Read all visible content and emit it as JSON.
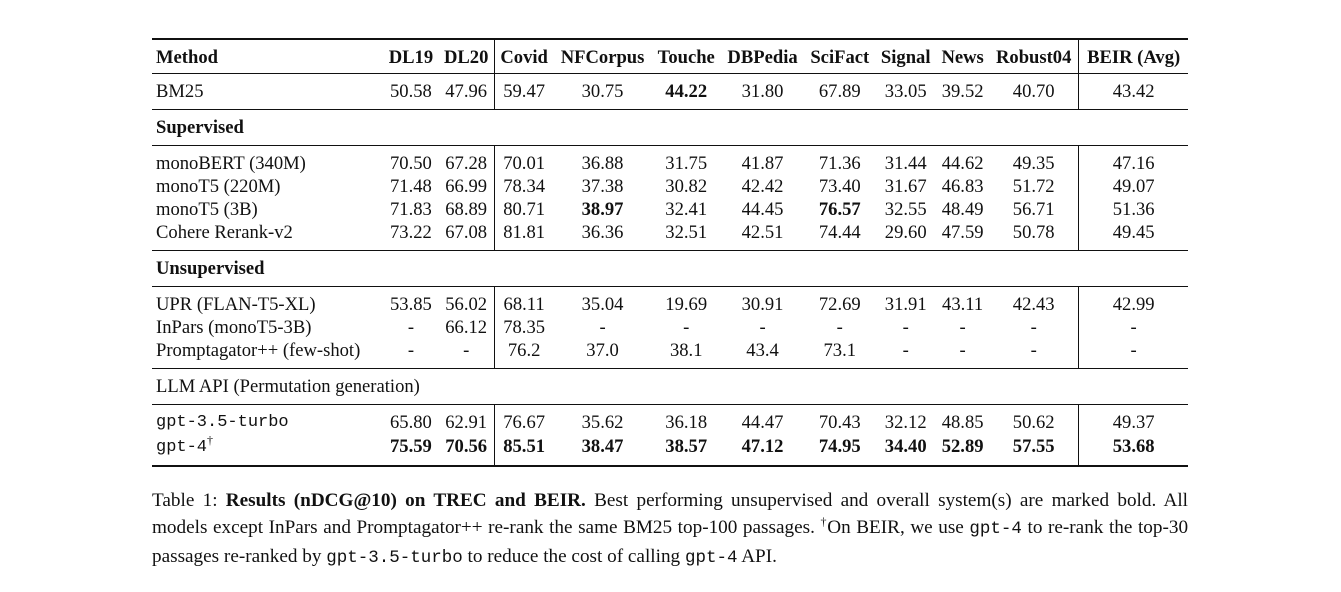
{
  "table": {
    "headers": [
      "Method",
      "DL19",
      "DL20",
      "Covid",
      "NFCorpus",
      "Touche",
      "DBPedia",
      "SciFact",
      "Signal",
      "News",
      "Robust04",
      "BEIR (Avg)"
    ],
    "bm25": {
      "method": "BM25",
      "values": [
        "50.58",
        "47.96",
        "59.47",
        "30.75",
        "44.22",
        "31.80",
        "67.89",
        "33.05",
        "39.52",
        "40.70",
        "43.42"
      ]
    },
    "supervised_title": "Supervised",
    "supervised": [
      {
        "method": "monoBERT (340M)",
        "values": [
          "70.50",
          "67.28",
          "70.01",
          "36.88",
          "31.75",
          "41.87",
          "71.36",
          "31.44",
          "44.62",
          "49.35",
          "47.16"
        ]
      },
      {
        "method": "monoT5 (220M)",
        "values": [
          "71.48",
          "66.99",
          "78.34",
          "37.38",
          "30.82",
          "42.42",
          "73.40",
          "31.67",
          "46.83",
          "51.72",
          "49.07"
        ]
      },
      {
        "method": "monoT5 (3B)",
        "values": [
          "71.83",
          "68.89",
          "80.71",
          "38.97",
          "32.41",
          "44.45",
          "76.57",
          "32.55",
          "48.49",
          "56.71",
          "51.36"
        ]
      },
      {
        "method": "Cohere Rerank-v2",
        "values": [
          "73.22",
          "67.08",
          "81.81",
          "36.36",
          "32.51",
          "42.51",
          "74.44",
          "29.60",
          "47.59",
          "50.78",
          "49.45"
        ]
      }
    ],
    "unsupervised_title": "Unsupervised",
    "unsupervised": [
      {
        "method": "UPR (FLAN-T5-XL)",
        "values": [
          "53.85",
          "56.02",
          "68.11",
          "35.04",
          "19.69",
          "30.91",
          "72.69",
          "31.91",
          "43.11",
          "42.43",
          "42.99"
        ]
      },
      {
        "method": "InPars (monoT5-3B)",
        "values": [
          "-",
          "66.12",
          "78.35",
          "-",
          "-",
          "-",
          "-",
          "-",
          "-",
          "-",
          "-"
        ]
      },
      {
        "method": "Promptagator++ (few-shot)",
        "values": [
          "-",
          "-",
          "76.2",
          "37.0",
          "38.1",
          "43.4",
          "73.1",
          "-",
          "-",
          "-",
          "-"
        ]
      }
    ],
    "llm_title": "LLM API (Permutation generation)",
    "llm": [
      {
        "method": "gpt-3.5-turbo",
        "values": [
          "65.80",
          "62.91",
          "76.67",
          "35.62",
          "36.18",
          "44.47",
          "70.43",
          "32.12",
          "48.85",
          "50.62",
          "49.37"
        ]
      },
      {
        "method": "gpt-4",
        "dagger": "†",
        "values": [
          "75.59",
          "70.56",
          "85.51",
          "38.47",
          "38.57",
          "47.12",
          "74.95",
          "34.40",
          "52.89",
          "57.55",
          "53.68"
        ]
      }
    ]
  },
  "caption": {
    "label": "Table 1:",
    "title": "Results (nDCG@10) on TREC and BEIR.",
    "t1": "Best performing unsupervised and overall system(s) are marked bold. All models except InPars and Promptagator++ re-rank the same BM25 top-100 passages.",
    "dagger": "†",
    "t2": "On BEIR, we use",
    "code1": "gpt-4",
    "t3": "to re-rank the top-30 passages re-ranked by",
    "code2": "gpt-3.5-turbo",
    "t4": "to reduce the cost of calling",
    "code3": "gpt-4",
    "t5": "API."
  }
}
